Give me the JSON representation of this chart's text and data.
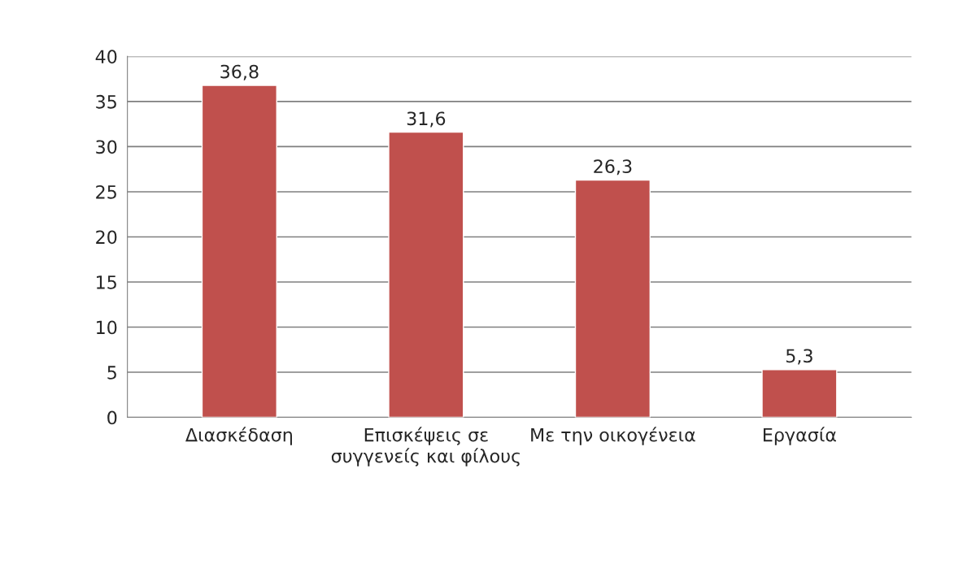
{
  "chart_data": {
    "type": "bar",
    "categories": [
      "Διασκέδαση",
      "Επισκέψεις σε συγγενείς και φίλους",
      "Με την οικογένεια",
      "Εργασία"
    ],
    "values": [
      36.8,
      31.6,
      26.3,
      5.3
    ],
    "value_labels": [
      "36,8",
      "31,6",
      "26,3",
      "5,3"
    ],
    "color": "#c0504d",
    "ylim": [
      0,
      40
    ],
    "yticks": [
      0,
      5,
      10,
      15,
      20,
      25,
      30,
      35,
      40
    ],
    "grid": "y"
  }
}
